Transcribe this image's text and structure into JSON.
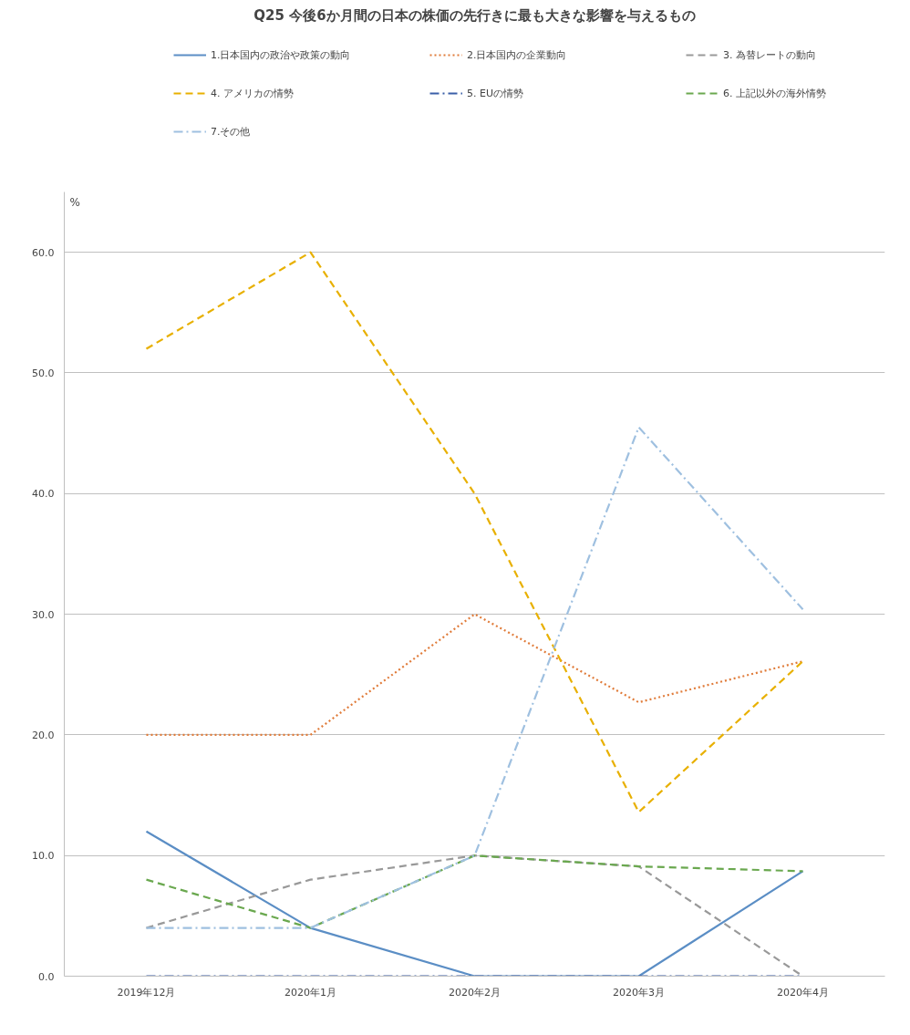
{
  "chart_data": {
    "type": "line",
    "title": "Q25 今後6か月間の日本の株価の先行きに最も大きな影響を与えるもの",
    "ylabel": "%",
    "categories": [
      "2019年12月",
      "2020年1月",
      "2020年2月",
      "2020年3月",
      "2020年4月"
    ],
    "ylim": [
      0,
      65
    ],
    "yticks": [
      {
        "value": 0,
        "label": "0.0"
      },
      {
        "value": 10,
        "label": "10.0"
      },
      {
        "value": 20,
        "label": "20.0"
      },
      {
        "value": 30,
        "label": "30.0"
      },
      {
        "value": 40,
        "label": "40.0"
      },
      {
        "value": 50,
        "label": "50.0"
      },
      {
        "value": 60,
        "label": "60.0"
      }
    ],
    "grid": "y",
    "legend": "top",
    "marker": "none",
    "series": [
      {
        "name": "1.日本国内の政治や政策の動向",
        "color": "#5b8ec5",
        "line_style": "solid",
        "values": [
          12,
          4,
          0,
          0,
          8.7
        ]
      },
      {
        "name": "2.日本国内の企業動向",
        "color": "#e07b39",
        "line_style": "dotted",
        "values": [
          20,
          20,
          30,
          22.7,
          26.1
        ]
      },
      {
        "name": "3. 為替レートの動向",
        "color": "#999999",
        "line_style": "dashed",
        "values": [
          4,
          8,
          10,
          9.1,
          0
        ]
      },
      {
        "name": "4. アメリカの情勢",
        "color": "#e8b000",
        "line_style": "dashed",
        "values": [
          52,
          60,
          40,
          13.6,
          26.1
        ]
      },
      {
        "name": "5. EUの情勢",
        "color": "#3a5fa8",
        "line_style": "dashdot",
        "values": [
          0,
          0,
          0,
          0,
          0
        ]
      },
      {
        "name": "6. 上記以外の海外情勢",
        "color": "#6aa84f",
        "line_style": "dashed",
        "values": [
          8,
          4,
          10,
          9.1,
          8.7
        ]
      },
      {
        "name": "7.その他",
        "color": "#9fc0e0",
        "line_style": "dashdot",
        "values": [
          4,
          4,
          10,
          45.5,
          30.4
        ]
      }
    ]
  }
}
